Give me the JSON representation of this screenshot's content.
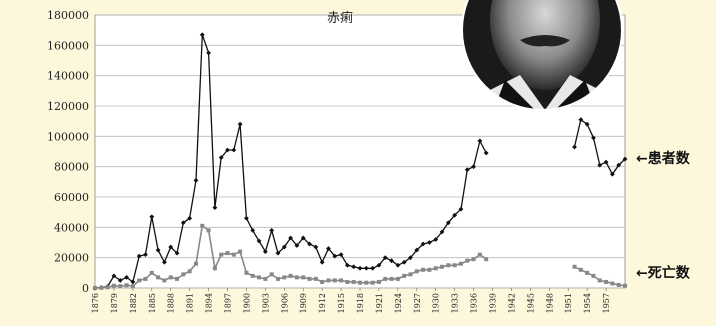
{
  "chart_data": {
    "type": "line",
    "title": "赤痢",
    "ylim": [
      0,
      180000
    ],
    "y_ticks": [
      "0",
      "20000",
      "40000",
      "60000",
      "80000",
      "100000",
      "120000",
      "140000",
      "160000",
      "180000"
    ],
    "x_range": [
      1876,
      1959
    ],
    "x_tick_labels": [
      "1876",
      "1879",
      "1882",
      "1885",
      "1888",
      "1891",
      "1894",
      "1897",
      "1900",
      "1903",
      "1906",
      "1909",
      "1912",
      "1915",
      "1918",
      "1921",
      "1924",
      "1927",
      "1930",
      "1933",
      "1936",
      "1939",
      "1942",
      "1945",
      "1948",
      "1951",
      "1954",
      "1957"
    ],
    "grid": true,
    "series": [
      {
        "name": "患者数",
        "legend_label": "←患者数",
        "color": "#111111",
        "marker": "diamond",
        "points": [
          [
            1876,
            0
          ],
          [
            1877,
            300
          ],
          [
            1878,
            1000
          ],
          [
            1879,
            8000
          ],
          [
            1880,
            5000
          ],
          [
            1881,
            7000
          ],
          [
            1882,
            4000
          ],
          [
            1883,
            21000
          ],
          [
            1884,
            22000
          ],
          [
            1885,
            47000
          ],
          [
            1886,
            25000
          ],
          [
            1887,
            17000
          ],
          [
            1888,
            27000
          ],
          [
            1889,
            23000
          ],
          [
            1890,
            43000
          ],
          [
            1891,
            46000
          ],
          [
            1892,
            71000
          ],
          [
            1893,
            167000
          ],
          [
            1894,
            155000
          ],
          [
            1895,
            53000
          ],
          [
            1896,
            86000
          ],
          [
            1897,
            91000
          ],
          [
            1898,
            91000
          ],
          [
            1899,
            108000
          ],
          [
            1900,
            46000
          ],
          [
            1901,
            38000
          ],
          [
            1902,
            31000
          ],
          [
            1903,
            24000
          ],
          [
            1904,
            38000
          ],
          [
            1905,
            23000
          ],
          [
            1906,
            27000
          ],
          [
            1907,
            33000
          ],
          [
            1908,
            28000
          ],
          [
            1909,
            33000
          ],
          [
            1910,
            29000
          ],
          [
            1911,
            27000
          ],
          [
            1912,
            17000
          ],
          [
            1913,
            26000
          ],
          [
            1914,
            21000
          ],
          [
            1915,
            22000
          ],
          [
            1916,
            15000
          ],
          [
            1917,
            14000
          ],
          [
            1918,
            13000
          ],
          [
            1919,
            13000
          ],
          [
            1920,
            13000
          ],
          [
            1921,
            15000
          ],
          [
            1922,
            20000
          ],
          [
            1923,
            18000
          ],
          [
            1924,
            15000
          ],
          [
            1925,
            17000
          ],
          [
            1926,
            20000
          ],
          [
            1927,
            25000
          ],
          [
            1928,
            29000
          ],
          [
            1929,
            30000
          ],
          [
            1930,
            32000
          ],
          [
            1931,
            37000
          ],
          [
            1932,
            43000
          ],
          [
            1933,
            48000
          ],
          [
            1934,
            52000
          ],
          [
            1935,
            78000
          ],
          [
            1936,
            80000
          ],
          [
            1937,
            97000
          ],
          [
            1938,
            89000
          ],
          null,
          [
            1952,
            93000
          ],
          [
            1953,
            111000
          ],
          [
            1954,
            108000
          ],
          [
            1955,
            99000
          ],
          [
            1956,
            81000
          ],
          [
            1957,
            83000
          ],
          [
            1958,
            75000
          ],
          [
            1959,
            81000
          ],
          [
            1960,
            85000
          ]
        ]
      },
      {
        "name": "死亡数",
        "legend_label": "←死亡数",
        "color": "#888888",
        "marker": "square",
        "points": [
          [
            1876,
            0
          ],
          [
            1877,
            100
          ],
          [
            1878,
            500
          ],
          [
            1879,
            1500
          ],
          [
            1880,
            1200
          ],
          [
            1881,
            1800
          ],
          [
            1882,
            1200
          ],
          [
            1883,
            5000
          ],
          [
            1884,
            6000
          ],
          [
            1885,
            10000
          ],
          [
            1886,
            7000
          ],
          [
            1887,
            5000
          ],
          [
            1888,
            7000
          ],
          [
            1889,
            6000
          ],
          [
            1890,
            9000
          ],
          [
            1891,
            11000
          ],
          [
            1892,
            16000
          ],
          [
            1893,
            41000
          ],
          [
            1894,
            38000
          ],
          [
            1895,
            13000
          ],
          [
            1896,
            22000
          ],
          [
            1897,
            23000
          ],
          [
            1898,
            22000
          ],
          [
            1899,
            24000
          ],
          [
            1900,
            10000
          ],
          [
            1901,
            8000
          ],
          [
            1902,
            7000
          ],
          [
            1903,
            6000
          ],
          [
            1904,
            9000
          ],
          [
            1905,
            6000
          ],
          [
            1906,
            7000
          ],
          [
            1907,
            8000
          ],
          [
            1908,
            7000
          ],
          [
            1909,
            7000
          ],
          [
            1910,
            6000
          ],
          [
            1911,
            6000
          ],
          [
            1912,
            4000
          ],
          [
            1913,
            5000
          ],
          [
            1914,
            5000
          ],
          [
            1915,
            5000
          ],
          [
            1916,
            4000
          ],
          [
            1917,
            4000
          ],
          [
            1918,
            3500
          ],
          [
            1919,
            3500
          ],
          [
            1920,
            3500
          ],
          [
            1921,
            4000
          ],
          [
            1922,
            6000
          ],
          [
            1923,
            6000
          ],
          [
            1924,
            6000
          ],
          [
            1925,
            8000
          ],
          [
            1926,
            9000
          ],
          [
            1927,
            11000
          ],
          [
            1928,
            12000
          ],
          [
            1929,
            12000
          ],
          [
            1930,
            13000
          ],
          [
            1931,
            14000
          ],
          [
            1932,
            15000
          ],
          [
            1933,
            15000
          ],
          [
            1934,
            16000
          ],
          [
            1935,
            18000
          ],
          [
            1936,
            19000
          ],
          [
            1937,
            22000
          ],
          [
            1938,
            19000
          ],
          null,
          [
            1952,
            14000
          ],
          [
            1953,
            12000
          ],
          [
            1954,
            10000
          ],
          [
            1955,
            8000
          ],
          [
            1956,
            5000
          ],
          [
            1957,
            4000
          ],
          [
            1958,
            3000
          ],
          [
            1959,
            2000
          ],
          [
            1960,
            1500
          ]
        ]
      }
    ]
  },
  "portrait": {
    "description": "circular portrait photo"
  }
}
